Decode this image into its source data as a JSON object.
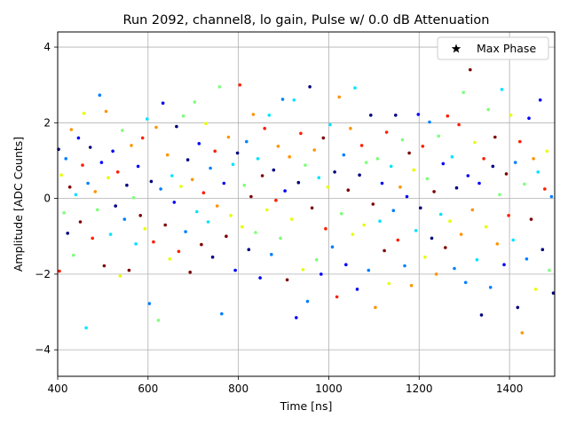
{
  "chart_data": {
    "type": "scatter",
    "title": "Run 2092, channel8, lo gain, Pulse w/ 0.0 dB Attenuation",
    "xlabel": "Time [ns]",
    "ylabel": "Amplitude [ADC Counts]",
    "xlim": [
      400,
      1500
    ],
    "ylim": [
      -4.7,
      4.4
    ],
    "xticks": [
      400,
      600,
      800,
      1000,
      1200,
      1400
    ],
    "yticks": [
      -4,
      -2,
      0,
      2,
      4
    ],
    "grid": true,
    "legend": {
      "placement": "top-right",
      "entries": [
        {
          "label": "Max Phase",
          "marker": "star"
        }
      ]
    },
    "colormap": [
      "#00007f",
      "#0000ff",
      "#0080ff",
      "#00e5ff",
      "#7dff7a",
      "#e5ff00",
      "#ff9400",
      "#ff1e00",
      "#7f0000"
    ],
    "series": [
      {
        "points": [
          [
            402,
            1.3
          ],
          [
            404,
            -1.92
          ],
          [
            408,
            0.62
          ],
          [
            414,
            -0.38
          ],
          [
            418,
            1.05
          ],
          [
            422,
            -0.92
          ],
          [
            427,
            0.3
          ],
          [
            430,
            1.82
          ],
          [
            435,
            -1.5
          ],
          [
            440,
            0.1
          ],
          [
            446,
            1.6
          ],
          [
            450,
            -0.62
          ],
          [
            455,
            0.88
          ],
          [
            458,
            2.25
          ],
          [
            463,
            -3.42
          ],
          [
            467,
            0.4
          ],
          [
            472,
            1.35
          ],
          [
            477,
            -1.05
          ],
          [
            483,
            0.18
          ],
          [
            488,
            -0.3
          ],
          [
            493,
            2.73
          ],
          [
            497,
            0.95
          ],
          [
            503,
            -1.78
          ],
          [
            507,
            2.3
          ],
          [
            512,
            0.55
          ],
          [
            517,
            -0.95
          ],
          [
            522,
            1.25
          ],
          [
            528,
            -0.2
          ],
          [
            533,
            0.7
          ],
          [
            538,
            -2.05
          ],
          [
            543,
            1.8
          ],
          [
            548,
            -0.55
          ],
          [
            553,
            0.35
          ],
          [
            558,
            -1.9
          ],
          [
            563,
            1.4
          ],
          [
            568,
            0.02
          ],
          [
            573,
            -1.2
          ],
          [
            578,
            0.85
          ],
          [
            583,
            -0.45
          ],
          [
            588,
            1.6
          ],
          [
            593,
            -0.8
          ],
          [
            598,
            2.1
          ],
          [
            603,
            -2.78
          ],
          [
            607,
            0.45
          ],
          [
            612,
            -1.15
          ],
          [
            618,
            1.88
          ],
          [
            623,
            -3.22
          ],
          [
            628,
            0.25
          ],
          [
            633,
            2.52
          ],
          [
            638,
            -0.7
          ],
          [
            643,
            1.15
          ],
          [
            648,
            -1.6
          ],
          [
            653,
            0.6
          ],
          [
            658,
            -0.1
          ],
          [
            663,
            1.9
          ],
          [
            668,
            -1.4
          ],
          [
            673,
            0.32
          ],
          [
            678,
            2.18
          ],
          [
            683,
            -0.88
          ],
          [
            688,
            1.02
          ],
          [
            693,
            -1.95
          ],
          [
            698,
            0.5
          ],
          [
            703,
            2.55
          ],
          [
            708,
            -0.35
          ],
          [
            713,
            1.45
          ],
          [
            718,
            -1.22
          ],
          [
            723,
            0.15
          ],
          [
            728,
            1.98
          ],
          [
            733,
            -0.62
          ],
          [
            738,
            0.8
          ],
          [
            743,
            -1.55
          ],
          [
            748,
            1.25
          ],
          [
            753,
            -0.2
          ],
          [
            758,
            2.95
          ],
          [
            763,
            -3.05
          ],
          [
            768,
            0.4
          ],
          [
            773,
            -1.0
          ],
          [
            778,
            1.62
          ],
          [
            783,
            -0.45
          ],
          [
            788,
            0.9
          ],
          [
            793,
            -1.9
          ],
          [
            798,
            1.2
          ],
          [
            803,
            3.0
          ],
          [
            808,
            -0.75
          ],
          [
            813,
            0.35
          ],
          [
            818,
            1.5
          ],
          [
            823,
            -1.35
          ],
          [
            828,
            0.05
          ],
          [
            833,
            2.22
          ],
          [
            838,
            -0.9
          ],
          [
            843,
            1.05
          ],
          [
            848,
            -2.1
          ],
          [
            853,
            0.6
          ],
          [
            858,
            1.85
          ],
          [
            863,
            -0.3
          ],
          [
            868,
            2.2
          ],
          [
            873,
            -1.48
          ],
          [
            878,
            0.75
          ],
          [
            883,
            -0.05
          ],
          [
            888,
            1.38
          ],
          [
            893,
            -1.05
          ],
          [
            898,
            2.62
          ],
          [
            903,
            0.2
          ],
          [
            908,
            -2.15
          ],
          [
            913,
            1.1
          ],
          [
            918,
            -0.55
          ],
          [
            923,
            2.6
          ],
          [
            928,
            -3.15
          ],
          [
            933,
            0.42
          ],
          [
            938,
            1.72
          ],
          [
            943,
            -1.88
          ],
          [
            948,
            0.88
          ],
          [
            953,
            -2.72
          ],
          [
            958,
            2.95
          ],
          [
            963,
            -0.25
          ],
          [
            968,
            1.28
          ],
          [
            973,
            -1.62
          ],
          [
            978,
            0.55
          ],
          [
            983,
            -2.0
          ],
          [
            988,
            1.6
          ],
          [
            993,
            -0.8
          ],
          [
            998,
            0.3
          ],
          [
            1003,
            1.95
          ],
          [
            1008,
            -1.28
          ],
          [
            1013,
            0.7
          ],
          [
            1018,
            -2.6
          ],
          [
            1023,
            2.68
          ],
          [
            1028,
            -0.4
          ],
          [
            1033,
            1.15
          ],
          [
            1038,
            -1.75
          ],
          [
            1043,
            0.22
          ],
          [
            1048,
            1.85
          ],
          [
            1053,
            -0.95
          ],
          [
            1058,
            2.92
          ],
          [
            1063,
            -2.4
          ],
          [
            1068,
            0.62
          ],
          [
            1073,
            1.4
          ],
          [
            1078,
            -0.7
          ],
          [
            1083,
            0.95
          ],
          [
            1088,
            -1.9
          ],
          [
            1093,
            2.2
          ],
          [
            1098,
            -0.15
          ],
          [
            1103,
            -2.88
          ],
          [
            1108,
            1.05
          ],
          [
            1113,
            -0.6
          ],
          [
            1118,
            0.4
          ],
          [
            1123,
            -1.38
          ],
          [
            1128,
            1.75
          ],
          [
            1133,
            -2.25
          ],
          [
            1138,
            0.85
          ],
          [
            1143,
            -0.32
          ],
          [
            1148,
            2.2
          ],
          [
            1153,
            -1.1
          ],
          [
            1158,
            0.3
          ],
          [
            1163,
            1.55
          ],
          [
            1168,
            -1.78
          ],
          [
            1173,
            0.05
          ],
          [
            1178,
            1.2
          ],
          [
            1183,
            -2.3
          ],
          [
            1188,
            0.75
          ],
          [
            1193,
            -0.85
          ],
          [
            1198,
            2.22
          ],
          [
            1203,
            -0.25
          ],
          [
            1208,
            1.38
          ],
          [
            1213,
            -1.55
          ],
          [
            1218,
            0.52
          ],
          [
            1223,
            2.02
          ],
          [
            1228,
            -1.05
          ],
          [
            1233,
            0.18
          ],
          [
            1238,
            -2.0
          ],
          [
            1243,
            1.65
          ],
          [
            1248,
            -0.42
          ],
          [
            1253,
            0.92
          ],
          [
            1258,
            -1.3
          ],
          [
            1263,
            2.18
          ],
          [
            1268,
            -0.6
          ],
          [
            1273,
            1.1
          ],
          [
            1278,
            -1.85
          ],
          [
            1283,
            0.28
          ],
          [
            1288,
            1.95
          ],
          [
            1293,
            -0.95
          ],
          [
            1298,
            2.8
          ],
          [
            1303,
            -2.22
          ],
          [
            1308,
            0.6
          ],
          [
            1313,
            3.4
          ],
          [
            1318,
            -0.3
          ],
          [
            1323,
            1.48
          ],
          [
            1328,
            -1.62
          ],
          [
            1333,
            0.4
          ],
          [
            1338,
            -3.08
          ],
          [
            1343,
            1.05
          ],
          [
            1348,
            -0.75
          ],
          [
            1353,
            2.35
          ],
          [
            1358,
            -2.35
          ],
          [
            1363,
            0.85
          ],
          [
            1368,
            1.62
          ],
          [
            1373,
            -1.2
          ],
          [
            1378,
            0.1
          ],
          [
            1383,
            2.88
          ],
          [
            1388,
            -1.75
          ],
          [
            1393,
            0.65
          ],
          [
            1398,
            -0.45
          ],
          [
            1403,
            2.2
          ],
          [
            1408,
            -1.1
          ],
          [
            1413,
            0.95
          ],
          [
            1418,
            -2.88
          ],
          [
            1423,
            1.5
          ],
          [
            1428,
            -3.55
          ],
          [
            1433,
            0.38
          ],
          [
            1438,
            -1.6
          ],
          [
            1443,
            2.12
          ],
          [
            1448,
            -0.55
          ],
          [
            1453,
            1.05
          ],
          [
            1458,
            -2.4
          ],
          [
            1463,
            0.7
          ],
          [
            1468,
            2.6
          ],
          [
            1473,
            -1.35
          ],
          [
            1478,
            0.25
          ],
          [
            1483,
            1.25
          ],
          [
            1488,
            -1.9
          ],
          [
            1493,
            0.05
          ],
          [
            1497,
            -2.5
          ]
        ]
      }
    ]
  }
}
